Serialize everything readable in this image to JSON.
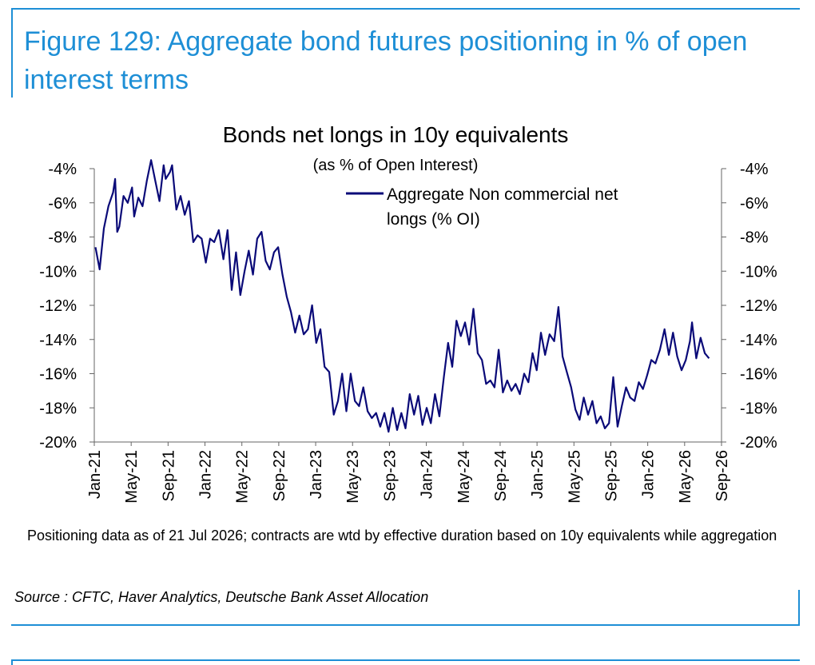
{
  "figure_title": "Figure 129: Aggregate bond futures positioning in % of open interest terms",
  "footnote": "Positioning data as of 21 Jul 2026; contracts are wtd by effective duration based on 10y equivalents while aggregation",
  "source": "Source : CFTC, Haver Analytics, Deutsche Bank Asset Allocation",
  "colors": {
    "accent": "#1e8fd6",
    "series": "#0a0a78"
  },
  "chart_data": {
    "type": "line",
    "title": "Bonds net longs in 10y equivalents",
    "subtitle": "(as % of Open Interest)",
    "xlabel": "",
    "ylabel": "",
    "ylim": [
      -20,
      -4
    ],
    "yticks": [
      -20,
      -18,
      -16,
      -14,
      -12,
      -10,
      -8,
      -6,
      -4
    ],
    "ytick_labels": [
      "-20%",
      "-18%",
      "-16%",
      "-14%",
      "-12%",
      "-10%",
      "-8%",
      "-6%",
      "-4%"
    ],
    "secondary_axis_labels": [
      "-20%",
      "-18%",
      "-16%",
      "-14%",
      "-12%",
      "-10%",
      "-8%",
      "-6%",
      "-4%"
    ],
    "xlim": [
      "2021-01",
      "2026-09"
    ],
    "xticks": [
      "Jan-21",
      "May-21",
      "Sep-21",
      "Jan-22",
      "May-22",
      "Sep-22",
      "Jan-23",
      "May-23",
      "Sep-23",
      "Jan-24",
      "May-24",
      "Sep-24",
      "Jan-25",
      "May-25",
      "Sep-25",
      "Jan-26",
      "May-26",
      "Sep-26"
    ],
    "legend_position": "top-right",
    "grid": false,
    "series": [
      {
        "name": "Aggregate Non commercial net longs (% OI)",
        "points": [
          [
            "2021-01-05",
            -8.6
          ],
          [
            "2021-01-19",
            -9.9
          ],
          [
            "2021-02-02",
            -7.5
          ],
          [
            "2021-02-16",
            -6.2
          ],
          [
            "2021-03-02",
            -5.4
          ],
          [
            "2021-03-09",
            -4.6
          ],
          [
            "2021-03-16",
            -7.7
          ],
          [
            "2021-03-23",
            -7.4
          ],
          [
            "2021-04-06",
            -5.6
          ],
          [
            "2021-04-20",
            -6.0
          ],
          [
            "2021-05-04",
            -5.1
          ],
          [
            "2021-05-11",
            -6.8
          ],
          [
            "2021-05-25",
            -5.7
          ],
          [
            "2021-06-08",
            -6.2
          ],
          [
            "2021-06-22",
            -4.7
          ],
          [
            "2021-07-06",
            -3.5
          ],
          [
            "2021-07-20",
            -4.7
          ],
          [
            "2021-08-03",
            -5.9
          ],
          [
            "2021-08-17",
            -3.8
          ],
          [
            "2021-08-24",
            -4.6
          ],
          [
            "2021-09-07",
            -4.2
          ],
          [
            "2021-09-14",
            -3.8
          ],
          [
            "2021-09-28",
            -6.4
          ],
          [
            "2021-10-12",
            -5.6
          ],
          [
            "2021-10-26",
            -6.7
          ],
          [
            "2021-11-09",
            -5.9
          ],
          [
            "2021-11-23",
            -8.3
          ],
          [
            "2021-12-07",
            -7.9
          ],
          [
            "2021-12-21",
            -8.1
          ],
          [
            "2022-01-04",
            -9.5
          ],
          [
            "2022-01-18",
            -8.1
          ],
          [
            "2022-02-01",
            -8.3
          ],
          [
            "2022-02-15",
            -7.6
          ],
          [
            "2022-03-01",
            -9.3
          ],
          [
            "2022-03-15",
            -7.6
          ],
          [
            "2022-03-29",
            -11.1
          ],
          [
            "2022-04-12",
            -8.9
          ],
          [
            "2022-04-26",
            -11.4
          ],
          [
            "2022-05-10",
            -10.0
          ],
          [
            "2022-05-24",
            -8.8
          ],
          [
            "2022-06-07",
            -10.2
          ],
          [
            "2022-06-21",
            -8.1
          ],
          [
            "2022-07-05",
            -7.7
          ],
          [
            "2022-07-19",
            -9.4
          ],
          [
            "2022-08-02",
            -9.9
          ],
          [
            "2022-08-16",
            -8.9
          ],
          [
            "2022-08-30",
            -8.6
          ],
          [
            "2022-09-13",
            -10.2
          ],
          [
            "2022-09-27",
            -11.5
          ],
          [
            "2022-10-11",
            -12.4
          ],
          [
            "2022-10-25",
            -13.6
          ],
          [
            "2022-11-08",
            -12.6
          ],
          [
            "2022-11-22",
            -13.7
          ],
          [
            "2022-12-06",
            -13.4
          ],
          [
            "2022-12-20",
            -12.0
          ],
          [
            "2023-01-03",
            -14.2
          ],
          [
            "2023-01-17",
            -13.4
          ],
          [
            "2023-01-31",
            -15.6
          ],
          [
            "2023-02-14",
            -15.9
          ],
          [
            "2023-02-28",
            -18.4
          ],
          [
            "2023-03-14",
            -17.6
          ],
          [
            "2023-03-28",
            -16.0
          ],
          [
            "2023-04-11",
            -18.2
          ],
          [
            "2023-04-25",
            -16.0
          ],
          [
            "2023-05-09",
            -17.6
          ],
          [
            "2023-05-23",
            -17.9
          ],
          [
            "2023-06-06",
            -16.8
          ],
          [
            "2023-06-20",
            -18.2
          ],
          [
            "2023-07-04",
            -18.6
          ],
          [
            "2023-07-18",
            -18.3
          ],
          [
            "2023-08-01",
            -19.1
          ],
          [
            "2023-08-15",
            -18.3
          ],
          [
            "2023-08-29",
            -19.4
          ],
          [
            "2023-09-12",
            -18.0
          ],
          [
            "2023-09-26",
            -19.3
          ],
          [
            "2023-10-10",
            -18.3
          ],
          [
            "2023-10-24",
            -19.2
          ],
          [
            "2023-11-07",
            -17.2
          ],
          [
            "2023-11-21",
            -18.4
          ],
          [
            "2023-12-05",
            -17.3
          ],
          [
            "2023-12-19",
            -19.0
          ],
          [
            "2024-01-02",
            -18.0
          ],
          [
            "2024-01-16",
            -18.9
          ],
          [
            "2024-01-30",
            -17.2
          ],
          [
            "2024-02-13",
            -18.5
          ],
          [
            "2024-02-27",
            -16.2
          ],
          [
            "2024-03-12",
            -14.2
          ],
          [
            "2024-03-26",
            -15.6
          ],
          [
            "2024-04-09",
            -12.9
          ],
          [
            "2024-04-23",
            -13.8
          ],
          [
            "2024-05-07",
            -13.0
          ],
          [
            "2024-05-21",
            -14.3
          ],
          [
            "2024-06-04",
            -12.2
          ],
          [
            "2024-06-18",
            -14.8
          ],
          [
            "2024-07-02",
            -15.2
          ],
          [
            "2024-07-16",
            -16.6
          ],
          [
            "2024-07-30",
            -16.4
          ],
          [
            "2024-08-13",
            -16.8
          ],
          [
            "2024-08-27",
            -14.6
          ],
          [
            "2024-09-10",
            -17.1
          ],
          [
            "2024-09-24",
            -16.4
          ],
          [
            "2024-10-08",
            -17.0
          ],
          [
            "2024-10-22",
            -16.6
          ],
          [
            "2024-11-05",
            -17.2
          ],
          [
            "2024-11-19",
            -16.0
          ],
          [
            "2024-12-03",
            -16.5
          ],
          [
            "2024-12-17",
            -14.8
          ],
          [
            "2024-12-31",
            -15.8
          ],
          [
            "2025-01-14",
            -13.6
          ],
          [
            "2025-01-28",
            -14.9
          ],
          [
            "2025-02-11",
            -13.7
          ],
          [
            "2025-02-25",
            -14.1
          ],
          [
            "2025-03-11",
            -12.1
          ],
          [
            "2025-03-25",
            -15.0
          ],
          [
            "2025-04-08",
            -15.9
          ],
          [
            "2025-04-22",
            -16.8
          ],
          [
            "2025-05-06",
            -18.1
          ],
          [
            "2025-05-20",
            -18.7
          ],
          [
            "2025-06-03",
            -17.4
          ],
          [
            "2025-06-17",
            -18.4
          ],
          [
            "2025-07-01",
            -17.6
          ],
          [
            "2025-07-15",
            -18.9
          ],
          [
            "2025-07-29",
            -18.5
          ],
          [
            "2025-08-12",
            -19.2
          ],
          [
            "2025-08-26",
            -18.9
          ],
          [
            "2025-09-09",
            -16.2
          ],
          [
            "2025-09-23",
            -19.1
          ],
          [
            "2025-10-07",
            -17.9
          ],
          [
            "2025-10-21",
            -16.8
          ],
          [
            "2025-11-04",
            -17.4
          ],
          [
            "2025-11-18",
            -17.6
          ],
          [
            "2025-12-02",
            -16.5
          ],
          [
            "2025-12-16",
            -16.9
          ],
          [
            "2025-12-30",
            -16.1
          ],
          [
            "2026-01-13",
            -15.2
          ],
          [
            "2026-01-27",
            -15.4
          ],
          [
            "2026-02-10",
            -14.6
          ],
          [
            "2026-02-24",
            -13.4
          ],
          [
            "2026-03-10",
            -14.9
          ],
          [
            "2026-03-24",
            -13.6
          ],
          [
            "2026-04-07",
            -15.0
          ],
          [
            "2026-04-21",
            -15.8
          ],
          [
            "2026-05-05",
            -15.2
          ],
          [
            "2026-05-19",
            -14.1
          ],
          [
            "2026-05-26",
            -13.0
          ],
          [
            "2026-06-09",
            -15.1
          ],
          [
            "2026-06-23",
            -13.9
          ],
          [
            "2026-07-07",
            -14.8
          ],
          [
            "2026-07-21",
            -15.1
          ]
        ]
      }
    ]
  }
}
